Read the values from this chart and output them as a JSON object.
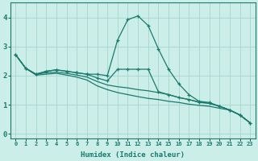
{
  "title": "",
  "xlabel": "Humidex (Indice chaleur)",
  "background_color": "#cceee8",
  "grid_color": "#aad8d0",
  "line_color": "#1a7a6e",
  "x_ticks": [
    0,
    1,
    2,
    3,
    4,
    5,
    6,
    7,
    8,
    9,
    10,
    11,
    12,
    13,
    14,
    15,
    16,
    17,
    18,
    19,
    20,
    21,
    22,
    23
  ],
  "y_ticks": [
    0,
    1,
    2,
    3,
    4
  ],
  "ylim": [
    -0.15,
    4.5
  ],
  "xlim": [
    -0.5,
    23.5
  ],
  "series": [
    {
      "x": [
        0,
        1,
        2,
        3,
        4,
        5,
        6,
        7,
        8,
        9,
        10,
        11,
        12,
        13,
        14,
        15,
        16,
        17,
        18,
        19,
        20,
        21,
        22,
        23
      ],
      "y": [
        2.72,
        2.25,
        2.05,
        2.15,
        2.2,
        2.15,
        2.1,
        2.05,
        2.05,
        2.0,
        3.22,
        3.92,
        4.05,
        3.72,
        2.92,
        2.22,
        1.72,
        1.35,
        1.12,
        1.08,
        0.95,
        0.82,
        0.65,
        0.38
      ],
      "marker": true
    },
    {
      "x": [
        0,
        1,
        2,
        3,
        4,
        5,
        6,
        7,
        8,
        9,
        10,
        11,
        12,
        13,
        14,
        15,
        16,
        17,
        18,
        19,
        20,
        21,
        22,
        23
      ],
      "y": [
        2.72,
        2.25,
        2.05,
        2.15,
        2.2,
        2.15,
        2.1,
        2.05,
        1.92,
        1.82,
        2.22,
        2.22,
        2.22,
        2.22,
        1.45,
        1.35,
        1.25,
        1.18,
        1.08,
        1.05,
        0.95,
        0.82,
        0.65,
        0.38
      ],
      "marker": true
    },
    {
      "x": [
        0,
        1,
        2,
        3,
        4,
        5,
        6,
        7,
        8,
        9,
        10,
        11,
        12,
        13,
        14,
        15,
        16,
        17,
        18,
        19,
        20,
        21,
        22,
        23
      ],
      "y": [
        2.72,
        2.25,
        2.05,
        2.1,
        2.12,
        2.08,
        2.02,
        1.95,
        1.8,
        1.68,
        1.62,
        1.58,
        1.52,
        1.48,
        1.42,
        1.35,
        1.25,
        1.18,
        1.1,
        1.05,
        0.95,
        0.82,
        0.65,
        0.38
      ],
      "marker": false
    },
    {
      "x": [
        0,
        1,
        2,
        3,
        4,
        5,
        6,
        7,
        8,
        9,
        10,
        11,
        12,
        13,
        14,
        15,
        16,
        17,
        18,
        19,
        20,
        21,
        22,
        23
      ],
      "y": [
        2.72,
        2.25,
        2.02,
        2.05,
        2.08,
        2.02,
        1.95,
        1.85,
        1.65,
        1.52,
        1.42,
        1.35,
        1.28,
        1.22,
        1.18,
        1.12,
        1.08,
        1.02,
        0.98,
        0.95,
        0.88,
        0.82,
        0.65,
        0.38
      ],
      "marker": false
    }
  ]
}
